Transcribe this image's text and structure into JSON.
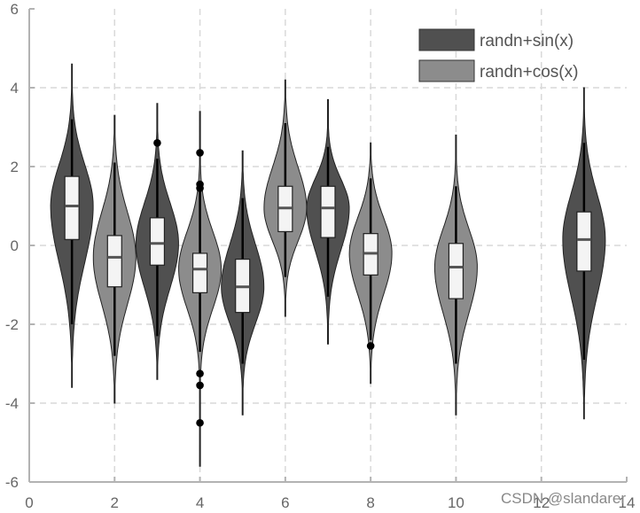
{
  "chart_data": {
    "type": "violin",
    "xlim": [
      0,
      14
    ],
    "ylim": [
      -6,
      6
    ],
    "xticks": [
      "0",
      "2",
      "4",
      "6",
      "8",
      "10",
      "12",
      "14"
    ],
    "yticks": [
      "-6",
      "-4",
      "-2",
      "0",
      "2",
      "4",
      "6"
    ],
    "grid": true,
    "legend_position": "top-right",
    "colors": {
      "randn+sin(x)": "#505050",
      "randn+cos(x)": "#8c8c8c"
    },
    "series": [
      {
        "name": "randn+sin(x)",
        "violins": [
          {
            "x": 1,
            "median": 1.0,
            "q1": 0.15,
            "q3": 1.75,
            "whisker_low": -2.0,
            "whisker_high": 3.2,
            "min": -3.6,
            "max": 4.6,
            "outliers": []
          },
          {
            "x": 3,
            "median": 0.05,
            "q1": -0.5,
            "q3": 0.7,
            "whisker_low": -2.3,
            "whisker_high": 2.2,
            "min": -3.4,
            "max": 3.6,
            "outliers": [
              2.6
            ]
          },
          {
            "x": 5,
            "median": -1.05,
            "q1": -1.7,
            "q3": -0.35,
            "whisker_low": -3.0,
            "whisker_high": 1.2,
            "min": -4.3,
            "max": 2.4,
            "outliers": []
          },
          {
            "x": 7,
            "median": 0.95,
            "q1": 0.2,
            "q3": 1.5,
            "whisker_low": -1.3,
            "whisker_high": 2.5,
            "min": -2.5,
            "max": 3.7,
            "outliers": []
          },
          {
            "x": 13,
            "median": 0.15,
            "q1": -0.65,
            "q3": 0.85,
            "whisker_low": -2.9,
            "whisker_high": 2.6,
            "min": -4.4,
            "max": 4.0,
            "outliers": []
          }
        ]
      },
      {
        "name": "randn+cos(x)",
        "violins": [
          {
            "x": 2,
            "median": -0.3,
            "q1": -1.05,
            "q3": 0.25,
            "whisker_low": -2.8,
            "whisker_high": 2.1,
            "min": -4.0,
            "max": 3.3,
            "outliers": []
          },
          {
            "x": 4,
            "median": -0.6,
            "q1": -1.2,
            "q3": -0.2,
            "whisker_low": -2.7,
            "whisker_high": 1.4,
            "min": -5.6,
            "max": 3.4,
            "outliers": [
              2.35,
              1.55,
              1.45,
              -3.25,
              -3.55,
              -4.5
            ]
          },
          {
            "x": 6,
            "median": 0.95,
            "q1": 0.35,
            "q3": 1.5,
            "whisker_low": -0.8,
            "whisker_high": 3.1,
            "min": -1.8,
            "max": 4.2,
            "outliers": []
          },
          {
            "x": 8,
            "median": -0.2,
            "q1": -0.75,
            "q3": 0.3,
            "whisker_low": -2.4,
            "whisker_high": 1.7,
            "min": -3.5,
            "max": 2.6,
            "outliers": [
              -2.55
            ]
          },
          {
            "x": 10,
            "median": -0.55,
            "q1": -1.35,
            "q3": 0.05,
            "whisker_low": -3.0,
            "whisker_high": 1.5,
            "min": -4.3,
            "max": 2.8,
            "outliers": []
          }
        ]
      }
    ]
  },
  "legend": [
    {
      "label": "randn+sin(x)",
      "color": "#505050"
    },
    {
      "label": "randn+cos(x)",
      "color": "#8c8c8c"
    }
  ],
  "watermark": "CSDN @slandarer"
}
